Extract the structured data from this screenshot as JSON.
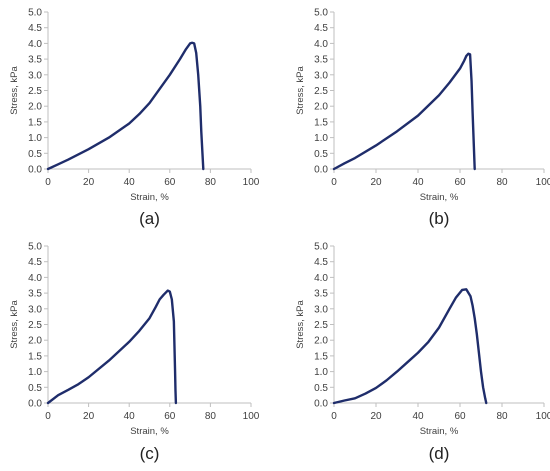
{
  "colors": {
    "series": "#1f2d6b",
    "axis": "#bfbfbf",
    "text": "#404040"
  },
  "chart_data": [
    {
      "type": "line",
      "panel_label": "(a)",
      "xlabel": "Strain, %",
      "ylabel": "Stress, kPa",
      "xlim": [
        0,
        100
      ],
      "ylim": [
        0,
        5
      ],
      "xticks": [
        "0",
        "20",
        "40",
        "60",
        "80",
        "100"
      ],
      "yticks": [
        "0.0",
        "0.5",
        "1.0",
        "1.5",
        "2.0",
        "2.5",
        "3.0",
        "3.5",
        "4.0",
        "4.5",
        "5.0"
      ],
      "grid": false,
      "series": [
        {
          "x": [
            0,
            5,
            10,
            20,
            30,
            40,
            45,
            50,
            55,
            60,
            65,
            68,
            70,
            71,
            72,
            73,
            74,
            75,
            75.5,
            76,
            76.5
          ],
          "y": [
            0,
            0.15,
            0.3,
            0.63,
            1.0,
            1.45,
            1.75,
            2.1,
            2.55,
            3.0,
            3.5,
            3.82,
            4.0,
            4.02,
            4.0,
            3.7,
            3.0,
            2.0,
            1.2,
            0.6,
            0
          ]
        }
      ]
    },
    {
      "type": "line",
      "panel_label": "(b)",
      "xlabel": "Strain, %",
      "ylabel": "Stress, kPa",
      "xlim": [
        0,
        100
      ],
      "ylim": [
        0,
        5
      ],
      "xticks": [
        "0",
        "20",
        "40",
        "60",
        "80",
        "100"
      ],
      "yticks": [
        "0.0",
        "0.5",
        "1.0",
        "1.5",
        "2.0",
        "2.5",
        "3.0",
        "3.5",
        "4.0",
        "4.5",
        "5.0"
      ],
      "grid": false,
      "series": [
        {
          "x": [
            0,
            5,
            10,
            20,
            30,
            40,
            50,
            55,
            60,
            62,
            63,
            64,
            64.8,
            65.5,
            66,
            66.5,
            67
          ],
          "y": [
            0,
            0.18,
            0.35,
            0.75,
            1.2,
            1.7,
            2.35,
            2.75,
            3.2,
            3.45,
            3.6,
            3.67,
            3.65,
            2.8,
            1.8,
            0.9,
            0
          ]
        }
      ]
    },
    {
      "type": "line",
      "panel_label": "(c)",
      "xlabel": "Strain, %",
      "ylabel": "Stress, kPa",
      "xlim": [
        0,
        100
      ],
      "ylim": [
        0,
        5
      ],
      "xticks": [
        "0",
        "20",
        "40",
        "60",
        "80",
        "100"
      ],
      "yticks": [
        "0.0",
        "0.5",
        "1.0",
        "1.5",
        "2.0",
        "2.5",
        "3.0",
        "3.5",
        "4.0",
        "4.5",
        "5.0"
      ],
      "grid": false,
      "series": [
        {
          "x": [
            0,
            5,
            10,
            15,
            20,
            30,
            40,
            45,
            50,
            53,
            55,
            57,
            59,
            60,
            61,
            62,
            62.3,
            62.6,
            62.8,
            63
          ],
          "y": [
            0,
            0.25,
            0.42,
            0.6,
            0.82,
            1.35,
            1.95,
            2.3,
            2.7,
            3.05,
            3.3,
            3.45,
            3.58,
            3.55,
            3.3,
            2.6,
            1.8,
            1.0,
            0.4,
            0
          ]
        }
      ]
    },
    {
      "type": "line",
      "panel_label": "(d)",
      "xlabel": "Strain, %",
      "ylabel": "Stress, kPa",
      "xlim": [
        0,
        100
      ],
      "ylim": [
        0,
        5
      ],
      "xticks": [
        "0",
        "20",
        "40",
        "60",
        "80",
        "100"
      ],
      "yticks": [
        "0.0",
        "0.5",
        "1.0",
        "1.5",
        "2.0",
        "2.5",
        "3.0",
        "3.5",
        "4.0",
        "4.5",
        "5.0"
      ],
      "grid": false,
      "series": [
        {
          "x": [
            0,
            5,
            10,
            15,
            20,
            25,
            30,
            35,
            40,
            45,
            50,
            55,
            58,
            61,
            63,
            65,
            66,
            67,
            68,
            69,
            70,
            71,
            72,
            72.5
          ],
          "y": [
            0,
            0.08,
            0.15,
            0.3,
            0.48,
            0.72,
            1.0,
            1.3,
            1.6,
            1.95,
            2.4,
            3.0,
            3.35,
            3.6,
            3.62,
            3.4,
            3.1,
            2.7,
            2.2,
            1.6,
            1.0,
            0.5,
            0.15,
            0
          ]
        }
      ]
    }
  ]
}
